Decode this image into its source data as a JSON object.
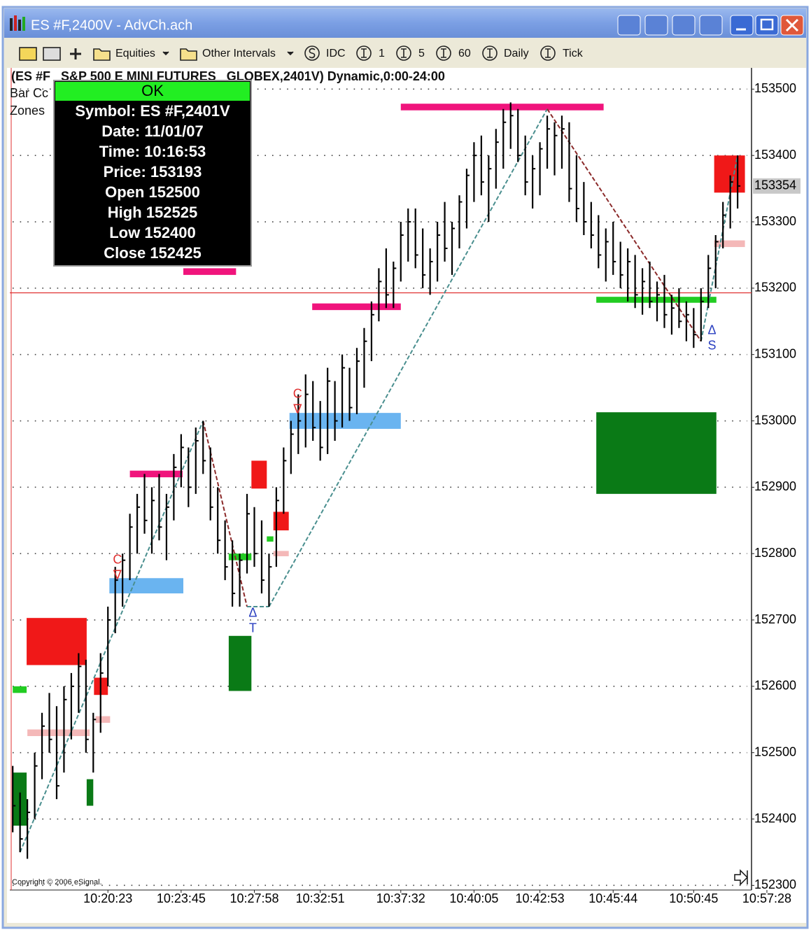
{
  "window": {
    "title": "ES #F,2400V - AdvCh.ach",
    "toolbar": [
      "Equities",
      "Other Intervals",
      "IDC",
      "1",
      "5",
      "60",
      "Daily",
      "Tick"
    ]
  },
  "chart_data": {
    "type": "ohlc",
    "title": "(ES #F   S&P 500 E MINI FUTURES   GLOBEX,2401V) Dynamic,0:00-24:00",
    "legend_lines": [
      "Bar Cc",
      "Zones"
    ],
    "copyright": "Copyright © 2006 eSignal.",
    "bar_color": "#000000",
    "xlim": [
      -0.4,
      100.9
    ],
    "ylim": [
      152293,
      153532
    ],
    "yticks": [
      152300,
      152400,
      152500,
      152600,
      152700,
      152800,
      152900,
      153000,
      153100,
      153200,
      153300,
      153400,
      153500
    ],
    "xticks": [
      {
        "value": 13,
        "label": "10:20:23"
      },
      {
        "value": 23,
        "label": "10:23:45"
      },
      {
        "value": 33,
        "label": "10:27:58"
      },
      {
        "value": 42,
        "label": "10:32:51"
      },
      {
        "value": 53,
        "label": "10:37:32"
      },
      {
        "value": 63,
        "label": "10:40:05"
      },
      {
        "value": 72,
        "label": "10:42:53"
      },
      {
        "value": 82,
        "label": "10:45:44"
      },
      {
        "value": 93,
        "label": "10:50:45"
      },
      {
        "value": 103,
        "label": "10:57:28"
      }
    ],
    "grid": true,
    "high": [
      152480,
      152440,
      152430,
      152500,
      152560,
      152590,
      152570,
      152600,
      152620,
      152650,
      152640,
      152560,
      152650,
      152720,
      152780,
      152800,
      152860,
      152890,
      152920,
      152900,
      152920,
      152890,
      152950,
      152980,
      152960,
      152990,
      153000,
      152960,
      152900,
      152850,
      152820,
      152800,
      152890,
      152870,
      152850,
      152800,
      152900,
      152960,
      153000,
      153040,
      153070,
      153060,
      153030,
      153080,
      153060,
      153100,
      153080,
      153110,
      153140,
      153180,
      153230,
      153260,
      153240,
      153300,
      153320,
      153320,
      153290,
      153260,
      153300,
      153330,
      153300,
      153340,
      153380,
      153420,
      153430,
      153400,
      153440,
      153470,
      153480,
      153470,
      153430,
      153400,
      153420,
      153460,
      153450,
      153460,
      153450,
      153400,
      153360,
      153330,
      153310,
      153290,
      153300,
      153270,
      153260,
      153250,
      153230,
      153240,
      153210,
      153220,
      153190,
      153200,
      153180,
      153170,
      153200,
      153250,
      153280,
      153330,
      153370,
      153400
    ],
    "low": [
      152380,
      152350,
      152340,
      152400,
      152460,
      152500,
      152430,
      152470,
      152520,
      152560,
      152500,
      152470,
      152530,
      152600,
      152680,
      152720,
      152760,
      152800,
      152830,
      152800,
      152820,
      152790,
      152850,
      152900,
      152870,
      152890,
      152920,
      152850,
      152800,
      152760,
      152720,
      152720,
      152770,
      152780,
      152740,
      152720,
      152780,
      152860,
      152920,
      152950,
      152960,
      152970,
      152940,
      152950,
      152970,
      152990,
      153000,
      153010,
      153050,
      153090,
      153150,
      153170,
      153170,
      153210,
      153240,
      153230,
      153200,
      153190,
      153210,
      153240,
      153220,
      153260,
      153290,
      153330,
      153340,
      153300,
      153350,
      153380,
      153410,
      153390,
      153340,
      153320,
      153340,
      153380,
      153370,
      153380,
      153330,
      153300,
      153280,
      153260,
      153230,
      153210,
      153220,
      153200,
      153180,
      153170,
      153160,
      153170,
      153150,
      153140,
      153130,
      153140,
      153120,
      153110,
      153120,
      153170,
      153200,
      153260,
      153290,
      153320
    ],
    "close": [
      152420,
      152370,
      152410,
      152480,
      152540,
      152520,
      152450,
      152580,
      152600,
      152630,
      152520,
      152550,
      152620,
      152700,
      152760,
      152790,
      152840,
      152870,
      152850,
      152880,
      152840,
      152870,
      152930,
      152960,
      152900,
      152970,
      152940,
      152870,
      152820,
      152780,
      152740,
      152790,
      152860,
      152800,
      152760,
      152780,
      152880,
      152940,
      152980,
      153000,
      153040,
      152990,
      152960,
      153060,
      153000,
      153080,
      153020,
      153090,
      153120,
      153160,
      153210,
      153190,
      153230,
      153280,
      153300,
      153250,
      153220,
      153240,
      153280,
      153260,
      153290,
      153330,
      153370,
      153400,
      153360,
      153380,
      153420,
      153450,
      153460,
      153400,
      153360,
      153380,
      153410,
      153440,
      153430,
      153440,
      153350,
      153320,
      153300,
      153280,
      153250,
      153270,
      153240,
      153220,
      153240,
      153190,
      153210,
      153180,
      153190,
      153160,
      153170,
      153150,
      153160,
      153130,
      153180,
      153230,
      153270,
      153310,
      153360,
      153354
    ],
    "zones": [
      {
        "from": 53,
        "to": 80.7,
        "low": 153468,
        "high": 153478,
        "color": "#f0147c"
      },
      {
        "from": 23.3,
        "to": 30.5,
        "low": 153220,
        "high": 153230,
        "color": "#f0147c"
      },
      {
        "from": 40.9,
        "to": 53,
        "low": 153167,
        "high": 153177,
        "color": "#f0147c"
      },
      {
        "from": 16,
        "to": 23.2,
        "low": 152915,
        "high": 152925,
        "color": "#f0147c"
      },
      {
        "from": 2,
        "to": 10.5,
        "low": 152525,
        "high": 152535,
        "color": "#f4b8b8"
      },
      {
        "from": 11.3,
        "to": 13.3,
        "low": 152545,
        "high": 152555,
        "color": "#f4b8b8"
      },
      {
        "from": 35.6,
        "to": 37.7,
        "low": 152796,
        "high": 152804,
        "color": "#f4b8b8"
      },
      {
        "from": 95.8,
        "to": 100,
        "low": 153262,
        "high": 153272,
        "color": "#f4b8b8"
      },
      {
        "from": 37.8,
        "to": 53,
        "low": 152988,
        "high": 153012,
        "color": "#6ab4f0"
      },
      {
        "from": 13.2,
        "to": 23.3,
        "low": 152740,
        "high": 152763,
        "color": "#6ab4f0"
      },
      {
        "from": 1.9,
        "to": 10.1,
        "low": 152632,
        "high": 152703,
        "color": "#f01818"
      },
      {
        "from": 11.1,
        "to": 13,
        "low": 152587,
        "high": 152613,
        "color": "#f01818"
      },
      {
        "from": 32.6,
        "to": 34.7,
        "low": 152898,
        "high": 152940,
        "color": "#f01818"
      },
      {
        "from": 35.6,
        "to": 37.7,
        "low": 152835,
        "high": 152863,
        "color": "#f01818"
      },
      {
        "from": 95.8,
        "to": 100,
        "low": 153344,
        "high": 153400,
        "color": "#f01818"
      },
      {
        "from": 79.7,
        "to": 96.1,
        "low": 152890,
        "high": 153013,
        "color": "#0a7a16"
      },
      {
        "from": 29.5,
        "to": 32.6,
        "low": 152593,
        "high": 152676,
        "color": "#0a7a16"
      },
      {
        "from": 10.1,
        "to": 11,
        "low": 152420,
        "high": 152460,
        "color": "#0a7a16"
      },
      {
        "from": 0,
        "to": 1.9,
        "low": 152390,
        "high": 152470,
        "color": "#0a7a16"
      },
      {
        "from": 79.7,
        "to": 96.1,
        "low": 153178,
        "high": 153187,
        "color": "#22cc22"
      },
      {
        "from": 29.5,
        "to": 32.6,
        "low": 152790,
        "high": 152800,
        "color": "#22cc22"
      },
      {
        "from": 0,
        "to": 1.9,
        "low": 152590,
        "high": 152600,
        "color": "#22cc22"
      },
      {
        "from": 34.7,
        "to": 35.6,
        "low": 152818,
        "high": 152826,
        "color": "#22cc22"
      }
    ],
    "zigzag": {
      "x": [
        1,
        26,
        32,
        35,
        73,
        94,
        99
      ],
      "values": [
        152350,
        153000,
        152720,
        152720,
        153470,
        153120,
        153400
      ],
      "up_color": "#4a8f8f",
      "down_color": "#8b2a2a"
    },
    "signals": [
      {
        "lines": [
          "C",
          "∇"
        ],
        "index": 14.3,
        "value": 152790,
        "color": "#e03030"
      },
      {
        "lines": [
          "C",
          "∇"
        ],
        "index": 38.9,
        "value": 153040,
        "color": "#e03030"
      },
      {
        "lines": [
          "Δ",
          "T"
        ],
        "index": 32.8,
        "value": 152710,
        "color": "#2a3fc0"
      },
      {
        "lines": [
          "Δ",
          "S"
        ],
        "index": 95.5,
        "value": 153136,
        "color": "#2a3fc0"
      }
    ]
  },
  "info_box": {
    "status": "OK",
    "rows": [
      {
        "label": "Symbol:",
        "value": "ES #F,2401V"
      },
      {
        "label": "Date:",
        "value": "11/01/07"
      },
      {
        "label": "Time:",
        "value": "10:16:53"
      },
      {
        "label": "Price:",
        "value": 153193
      },
      {
        "label": "Open",
        "value": 152500
      },
      {
        "label": "High",
        "value": 152525
      },
      {
        "label": "Low",
        "value": 152400
      },
      {
        "label": "Close",
        "value": 152425
      }
    ]
  }
}
